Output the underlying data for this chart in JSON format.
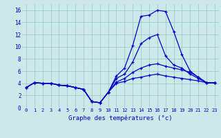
{
  "title": "Graphe des températures (°c)",
  "bg_color": "#cce8e8",
  "grid_color": "#99cccc",
  "line_color": "#0000cc",
  "xlim": [
    -0.5,
    23.5
  ],
  "ylim": [
    0,
    17
  ],
  "xticks": [
    0,
    1,
    2,
    3,
    4,
    5,
    6,
    7,
    8,
    9,
    10,
    11,
    12,
    13,
    14,
    15,
    16,
    17,
    18,
    19,
    20,
    21,
    22,
    23
  ],
  "yticks": [
    0,
    2,
    4,
    6,
    8,
    10,
    12,
    14,
    16
  ],
  "series": [
    [
      3.3,
      4.1,
      4.0,
      4.0,
      3.7,
      3.6,
      3.3,
      3.0,
      1.0,
      0.8,
      2.5,
      5.2,
      6.5,
      10.2,
      15.0,
      15.2,
      16.0,
      15.8,
      12.5,
      8.7,
      6.0,
      5.0,
      4.1,
      4.1
    ],
    [
      3.3,
      4.1,
      4.0,
      4.0,
      3.7,
      3.6,
      3.3,
      3.0,
      1.0,
      0.8,
      2.5,
      4.8,
      5.5,
      7.5,
      10.5,
      11.5,
      12.0,
      8.5,
      7.0,
      6.5,
      5.5,
      4.8,
      4.1,
      4.1
    ],
    [
      3.3,
      4.1,
      4.0,
      4.0,
      3.7,
      3.6,
      3.3,
      3.0,
      1.0,
      0.8,
      2.5,
      4.2,
      4.8,
      5.8,
      6.5,
      7.0,
      7.2,
      6.8,
      6.5,
      6.2,
      5.8,
      5.0,
      4.1,
      4.1
    ],
    [
      3.3,
      4.1,
      4.0,
      4.0,
      3.7,
      3.6,
      3.3,
      3.0,
      1.0,
      0.8,
      2.5,
      4.0,
      4.3,
      4.8,
      5.0,
      5.3,
      5.5,
      5.2,
      5.0,
      4.8,
      4.6,
      4.4,
      4.1,
      4.1
    ]
  ]
}
